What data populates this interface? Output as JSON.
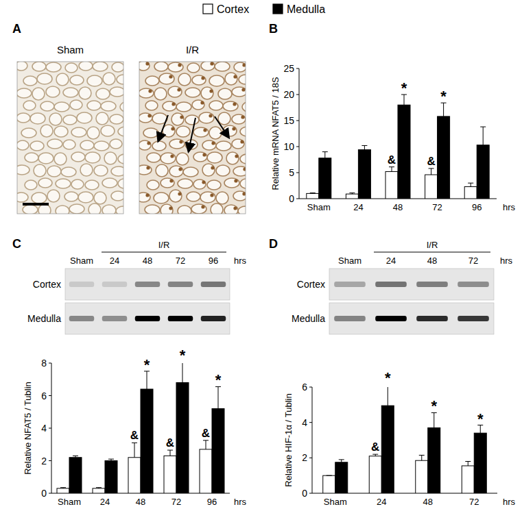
{
  "figure": {
    "panel_labels": [
      "A",
      "B",
      "C",
      "D"
    ],
    "image_labels": [
      "Sham",
      "I/R"
    ]
  },
  "chart_data": [
    {
      "type": "bar",
      "categories": [
        "Sham",
        "24",
        "48",
        "72",
        "96"
      ],
      "x_label": "hrs",
      "y_label": "Relative mRNA NFAT5 / 18S",
      "ylim": [
        0,
        25
      ],
      "yticks": [
        0,
        5,
        10,
        15,
        20,
        25
      ],
      "series": [
        {
          "name": "Cortex",
          "color": "#ffffff",
          "values": [
            1.0,
            0.9,
            5.2,
            4.6,
            2.3
          ],
          "errors": [
            0.1,
            0.2,
            0.9,
            1.2,
            0.7
          ],
          "annotations": [
            null,
            null,
            "&",
            "&",
            null
          ]
        },
        {
          "name": "Medulla",
          "color": "#000000",
          "values": [
            7.8,
            9.4,
            18.0,
            15.8,
            10.3
          ],
          "errors": [
            1.2,
            0.8,
            2.0,
            2.6,
            3.5
          ],
          "annotations": [
            null,
            null,
            "*",
            "*",
            null
          ]
        }
      ]
    },
    {
      "type": "bar",
      "categories": [
        "Sham",
        "24",
        "48",
        "72",
        "96"
      ],
      "x_label": "hrs",
      "y_label": "Relative NFAT5 / Tublin",
      "ylim": [
        0,
        8
      ],
      "yticks": [
        0,
        2,
        4,
        6,
        8
      ],
      "blot": {
        "lanes": [
          "Sham",
          "24",
          "48",
          "72",
          "96"
        ],
        "lane_unit": "hrs",
        "group_label": "I/R",
        "rows": [
          "Cortex",
          "Medulla"
        ]
      },
      "series": [
        {
          "name": "Cortex",
          "color": "#ffffff",
          "values": [
            0.3,
            0.3,
            2.2,
            2.3,
            2.7
          ],
          "errors": [
            0.05,
            0.05,
            0.9,
            0.35,
            0.55
          ],
          "annotations": [
            null,
            null,
            "&",
            "&",
            "&"
          ]
        },
        {
          "name": "Medulla",
          "color": "#000000",
          "values": [
            2.2,
            2.0,
            6.4,
            6.8,
            5.2
          ],
          "errors": [
            0.1,
            0.1,
            1.1,
            1.3,
            1.35
          ],
          "annotations": [
            null,
            null,
            "*",
            "*",
            "*"
          ]
        }
      ]
    },
    {
      "type": "bar",
      "categories": [
        "Sham",
        "24",
        "48",
        "72"
      ],
      "x_label": "hrs",
      "y_label": "Relative HIF-1α / Tublin",
      "ylim": [
        0,
        6
      ],
      "yticks": [
        0,
        2,
        4,
        6
      ],
      "blot": {
        "lanes": [
          "Sham",
          "24",
          "48",
          "72"
        ],
        "lane_unit": "hrs",
        "group_label": "I/R",
        "rows": [
          "Cortex",
          "Medulla"
        ]
      },
      "series": [
        {
          "name": "Cortex",
          "color": "#ffffff",
          "values": [
            1.0,
            2.1,
            1.85,
            1.55
          ],
          "errors": [
            0.0,
            0.1,
            0.3,
            0.25
          ],
          "annotations": [
            null,
            "&",
            null,
            null
          ]
        },
        {
          "name": "Medulla",
          "color": "#000000",
          "values": [
            1.75,
            4.95,
            3.7,
            3.4
          ],
          "errors": [
            0.15,
            1.2,
            0.85,
            0.45
          ],
          "annotations": [
            null,
            "*",
            "*",
            "*"
          ]
        }
      ]
    }
  ]
}
